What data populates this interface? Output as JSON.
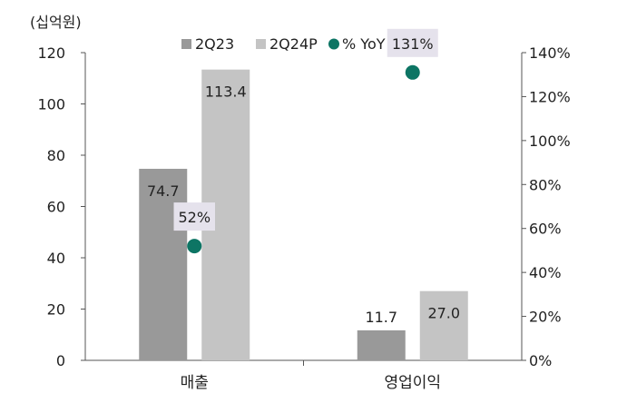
{
  "chart_data": {
    "type": "bar",
    "unit_label": "(십억원)",
    "categories": [
      "매출",
      "영업이익"
    ],
    "series": [
      {
        "name": "2Q23",
        "values": [
          74.7,
          11.7
        ],
        "color": "#999999"
      },
      {
        "name": "2Q24P",
        "values": [
          113.4,
          27.0
        ],
        "color": "#c4c4c4"
      }
    ],
    "value_labels": [
      [
        "74.7",
        "11.7"
      ],
      [
        "113.4",
        "27.0"
      ]
    ],
    "yoy": {
      "name": "% YoY (우)",
      "values": [
        52,
        131
      ],
      "labels": [
        "52%",
        "131%"
      ],
      "color": "#0d7564"
    },
    "ylim": [
      0,
      120
    ],
    "yticks": [
      "0",
      "20",
      "40",
      "60",
      "80",
      "100",
      "120"
    ],
    "y2lim": [
      0,
      140
    ],
    "y2ticks": [
      "0%",
      "20%",
      "40%",
      "60%",
      "80%",
      "100%",
      "120%",
      "140%"
    ],
    "legend_position": "top",
    "grid": false,
    "yoy_box_color": "#e5e2ec"
  }
}
